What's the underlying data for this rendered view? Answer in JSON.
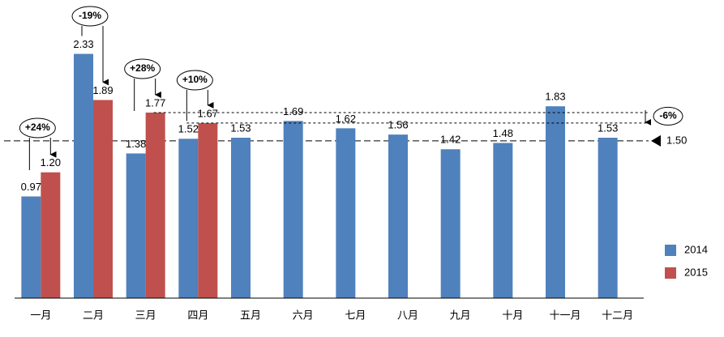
{
  "chart_data": {
    "type": "bar",
    "categories": [
      "一月",
      "二月",
      "三月",
      "四月",
      "五月",
      "六月",
      "七月",
      "八月",
      "九月",
      "十月",
      "十一月",
      "十二月"
    ],
    "series": [
      {
        "name": "2014",
        "color": "#4f81bd",
        "values": [
          0.97,
          2.33,
          1.38,
          1.52,
          1.53,
          1.69,
          1.62,
          1.56,
          1.42,
          1.48,
          1.83,
          1.53
        ],
        "value_labels": [
          "0.97",
          "2.33",
          "1.38",
          "1.52",
          "1.53",
          "1.69",
          "1.62",
          "1.56",
          "1.42",
          "1.48",
          "1.83",
          "1.53"
        ]
      },
      {
        "name": "2015",
        "color": "#c0504d",
        "values": [
          1.2,
          1.89,
          1.77,
          1.67,
          null,
          null,
          null,
          null,
          null,
          null,
          null,
          null
        ],
        "value_labels": [
          "1.20",
          "1.89",
          "1.77",
          "1.67",
          null,
          null,
          null,
          null,
          null,
          null,
          null,
          null
        ]
      }
    ],
    "ylim": [
      0,
      2.5
    ],
    "reference_line": {
      "value": 1.5,
      "label": "1.50"
    },
    "annotations": [
      "+24%",
      "-19%",
      "+28%",
      "+10%",
      "-6%"
    ],
    "legend": "bottom-right"
  }
}
